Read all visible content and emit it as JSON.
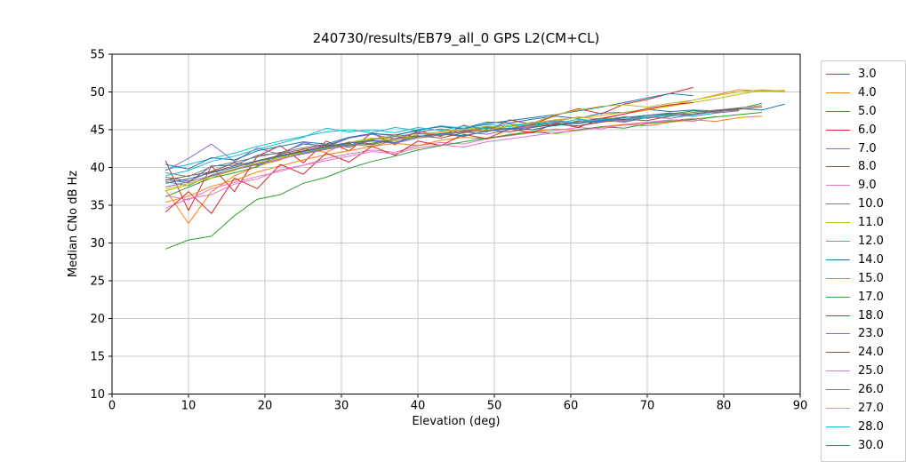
{
  "chart_data": {
    "type": "line",
    "title": "240730/results/EB79_all_0 GPS L2(CM+CL)",
    "xlabel": "Elevation (deg)",
    "ylabel": "Median CNo dB Hz",
    "xlim": [
      0,
      90
    ],
    "ylim": [
      10,
      55
    ],
    "xticks": [
      0,
      10,
      20,
      30,
      40,
      50,
      60,
      70,
      80,
      90
    ],
    "yticks": [
      10,
      15,
      20,
      25,
      30,
      35,
      40,
      45,
      50,
      55
    ],
    "grid": true,
    "grid_color": "#c9c9c9",
    "legend_position": "right-outside",
    "series": [
      {
        "name": "3.0",
        "color": "#1f77b4",
        "x_start": 7,
        "x_step": 3,
        "values": [
          38.4,
          38.0,
          40.2,
          40.3,
          41.6,
          41.9,
          43.1,
          42.9,
          43.9,
          44.5,
          44.3,
          44.9,
          45.5,
          45.2,
          46.0,
          45.9,
          46.4,
          46.8,
          46.5,
          47.2,
          47.3,
          47.7,
          47.4,
          47.6,
          47.5,
          47.8,
          47.6,
          48.4
        ]
      },
      {
        "name": "4.0",
        "color": "#ff7f0e",
        "x_start": 7,
        "x_step": 3,
        "values": [
          37.0,
          32.6,
          36.8,
          38.9,
          40.2,
          41.0,
          42.5,
          42.0,
          43.4,
          43.1,
          44.2,
          43.9,
          44.8,
          45.1,
          44.7,
          45.6,
          45.4,
          46.1,
          46.7,
          46.4,
          47.1,
          47.6,
          48.2,
          48.9,
          49.6,
          50.3,
          50.1,
          50.2
        ]
      },
      {
        "name": "5.0",
        "color": "#2ca02c",
        "x_start": 7,
        "x_step": 3,
        "values": [
          36.1,
          37.4,
          38.6,
          39.3,
          40.1,
          41.6,
          41.8,
          42.6,
          43.0,
          43.2,
          43.8,
          44.6,
          44.2,
          44.9,
          45.2,
          45.0,
          45.7,
          45.5,
          46.2,
          46.0,
          46.6,
          46.9,
          47.1,
          47.5,
          47.3,
          47.8,
          48.5
        ]
      },
      {
        "name": "6.0",
        "color": "#d62728",
        "x_start": 7,
        "x_step": 3,
        "values": [
          40.9,
          34.3,
          40.2,
          36.8,
          41.5,
          42.9,
          40.6,
          43.5,
          42.2,
          44.6,
          43.0,
          44.9,
          44.1,
          45.6,
          44.8,
          46.3,
          45.7,
          46.9,
          47.8,
          47.1,
          48.4,
          49.0,
          49.8,
          50.6
        ]
      },
      {
        "name": "7.0",
        "color": "#9467bd",
        "x_start": 7,
        "x_step": 3,
        "values": [
          39.6,
          41.2,
          43.1,
          40.8,
          42.6,
          41.7,
          43.3,
          42.7,
          43.9,
          44.4,
          43.8,
          44.7,
          45.1,
          44.6,
          45.4,
          45.0,
          45.8,
          46.2,
          45.9,
          46.4,
          46.1,
          46.7,
          47.0,
          46.8,
          47.2,
          47.5
        ]
      },
      {
        "name": "8.0",
        "color": "#8c564b",
        "x_start": 7,
        "x_step": 3,
        "values": [
          38.7,
          38.2,
          39.5,
          40.6,
          40.3,
          41.8,
          42.4,
          43.0,
          42.7,
          43.7,
          44.1,
          43.9,
          44.5,
          44.8,
          45.3,
          45.1,
          45.9,
          45.6,
          46.1,
          46.5,
          46.3,
          46.9,
          47.2,
          47.0,
          47.4,
          47.7,
          48.0
        ]
      },
      {
        "name": "9.0",
        "color": "#e377c2",
        "x_start": 7,
        "x_step": 3,
        "values": [
          34.6,
          35.9,
          36.4,
          37.8,
          38.5,
          39.7,
          40.3,
          41.2,
          41.8,
          42.3,
          42.0,
          42.9,
          43.3,
          43.1,
          43.8,
          44.2,
          44.6,
          44.9,
          45.3,
          45.1,
          45.7,
          46.0,
          46.3,
          46.1,
          46.8
        ]
      },
      {
        "name": "10.0",
        "color": "#7f7f7f",
        "x_start": 7,
        "x_step": 3,
        "values": [
          38.1,
          37.6,
          39.0,
          39.8,
          40.5,
          41.3,
          41.9,
          42.5,
          43.1,
          42.8,
          43.6,
          44.0,
          44.4,
          44.1,
          44.9,
          45.2,
          45.0,
          45.6,
          45.9,
          46.2,
          46.0,
          46.6,
          46.9,
          47.1,
          47.4,
          47.6
        ]
      },
      {
        "name": "11.0",
        "color": "#bcbd22",
        "x_start": 7,
        "x_step": 3,
        "values": [
          36.9,
          37.7,
          38.8,
          39.6,
          40.9,
          41.4,
          42.1,
          42.7,
          43.3,
          43.9,
          43.5,
          44.4,
          44.7,
          45.0,
          45.5,
          45.2,
          45.9,
          46.3,
          46.6,
          46.9,
          47.3,
          47.7,
          48.1,
          48.6,
          49.1,
          49.7,
          50.2,
          50.0
        ]
      },
      {
        "name": "12.0",
        "color": "#17becf",
        "x_start": 7,
        "x_step": 3,
        "values": [
          39.7,
          40.4,
          41.2,
          41.9,
          42.8,
          43.5,
          44.1,
          44.7,
          45.0,
          44.6,
          45.3,
          44.9,
          45.5,
          45.2,
          45.7,
          45.4,
          46.0,
          45.8,
          46.4,
          46.1,
          46.7,
          46.5,
          47.0,
          46.8,
          47.2
        ]
      },
      {
        "name": "14.0",
        "color": "#1f77b4",
        "x_start": 7,
        "x_step": 3,
        "values": [
          40.4,
          39.8,
          41.3,
          41.0,
          42.2,
          42.8,
          43.4,
          43.1,
          44.0,
          44.5,
          44.2,
          45.0,
          45.4,
          45.1,
          45.8,
          46.2,
          46.6,
          47.0,
          47.5,
          48.0,
          48.6,
          49.2,
          49.8,
          49.5
        ]
      },
      {
        "name": "15.0",
        "color": "#ff7f0e",
        "x_start": 7,
        "x_step": 3,
        "values": [
          35.4,
          36.2,
          37.5,
          38.3,
          39.4,
          40.2,
          41.0,
          41.7,
          42.2,
          42.8,
          43.2,
          42.9,
          43.6,
          44.0,
          43.8,
          44.4,
          44.8,
          45.1,
          44.9,
          45.4,
          45.7,
          45.5,
          46.0,
          46.3,
          46.1,
          46.6,
          46.8
        ]
      },
      {
        "name": "17.0",
        "color": "#2ca02c",
        "x_start": 7,
        "x_step": 3,
        "values": [
          29.2,
          30.4,
          30.9,
          33.6,
          35.8,
          36.4,
          37.9,
          38.7,
          39.9,
          40.8,
          41.5,
          42.3,
          42.9,
          43.4,
          43.9,
          44.3,
          44.7,
          44.5,
          45.0,
          45.4,
          45.2,
          45.8,
          46.1,
          46.4,
          46.7,
          47.0,
          47.3
        ]
      },
      {
        "name": "18.0",
        "color": "#d62728",
        "x_start": 7,
        "x_step": 3,
        "values": [
          34.1,
          36.8,
          33.9,
          38.6,
          37.2,
          40.4,
          39.1,
          41.9,
          40.7,
          42.8,
          41.6,
          43.5,
          42.9,
          44.4,
          43.8,
          45.1,
          44.6,
          45.9,
          45.3,
          46.5,
          47.1,
          47.8,
          48.3,
          48.6
        ]
      },
      {
        "name": "23.0",
        "color": "#9467bd",
        "x_start": 7,
        "x_step": 3,
        "values": [
          37.4,
          38.1,
          38.9,
          39.7,
          40.4,
          41.1,
          41.8,
          42.4,
          42.9,
          43.5,
          43.2,
          43.9,
          44.3,
          44.7,
          44.4,
          45.0,
          45.4,
          45.7,
          45.5,
          46.1,
          46.4,
          46.7,
          46.5,
          47.0,
          47.4
        ]
      },
      {
        "name": "24.0",
        "color": "#8c564b",
        "x_start": 7,
        "x_step": 3,
        "values": [
          38.3,
          38.9,
          39.4,
          40.2,
          40.9,
          41.6,
          42.2,
          42.8,
          43.3,
          43.0,
          43.8,
          44.2,
          43.9,
          44.6,
          45.0,
          44.7,
          45.3,
          45.7,
          45.5,
          46.0,
          46.4,
          46.2,
          46.8,
          47.1,
          47.5,
          47.9
        ]
      },
      {
        "name": "25.0",
        "color": "#e377c2",
        "x_start": 7,
        "x_step": 3,
        "values": [
          36.3,
          35.7,
          37.2,
          38.0,
          38.8,
          39.5,
          40.3,
          40.9,
          41.5,
          42.1,
          41.8,
          42.6,
          43.0,
          42.7,
          43.4,
          43.8,
          44.2,
          44.6,
          44.9,
          45.3,
          45.6,
          45.9,
          46.2,
          46.5
        ]
      },
      {
        "name": "26.0",
        "color": "#7f7f7f",
        "x_start": 7,
        "x_step": 3,
        "values": [
          39.3,
          38.8,
          40.1,
          40.7,
          41.4,
          42.0,
          42.6,
          43.1,
          42.9,
          43.7,
          44.1,
          44.5,
          44.2,
          44.9,
          45.3,
          45.0,
          45.6,
          46.0,
          45.8,
          46.3,
          46.7,
          46.5,
          47.0,
          47.3,
          47.6,
          47.9,
          48.2
        ]
      },
      {
        "name": "27.0",
        "color": "#bcbd22",
        "x_start": 7,
        "x_step": 3,
        "values": [
          37.1,
          37.9,
          38.6,
          39.8,
          40.6,
          41.3,
          42.0,
          42.6,
          43.2,
          43.8,
          44.2,
          43.9,
          44.8,
          45.1,
          44.9,
          45.6,
          45.9,
          47.0,
          47.6,
          48.1,
          48.3,
          48.0,
          48.5,
          48.9,
          49.5,
          50.0,
          50.3,
          50.1
        ]
      },
      {
        "name": "28.0",
        "color": "#17becf",
        "x_start": 7,
        "x_step": 3,
        "values": [
          38.9,
          39.6,
          40.8,
          41.5,
          42.4,
          43.2,
          44.0,
          45.2,
          44.7,
          45.0,
          44.6,
          45.3,
          44.9,
          45.5,
          45.1,
          45.8,
          45.5,
          46.1,
          45.9,
          46.4,
          46.2,
          46.7,
          46.9,
          47.0
        ]
      },
      {
        "name": "30.0",
        "color": "#1f77b4",
        "x_start": 7,
        "x_step": 3,
        "values": [
          37.9,
          38.5,
          39.3,
          40.0,
          40.8,
          41.5,
          42.1,
          42.7,
          43.2,
          43.6,
          43.3,
          44.1,
          44.5,
          44.2,
          44.8,
          45.2,
          45.0,
          45.6,
          45.9,
          46.2,
          46.6,
          46.9,
          47.2
        ]
      }
    ]
  }
}
